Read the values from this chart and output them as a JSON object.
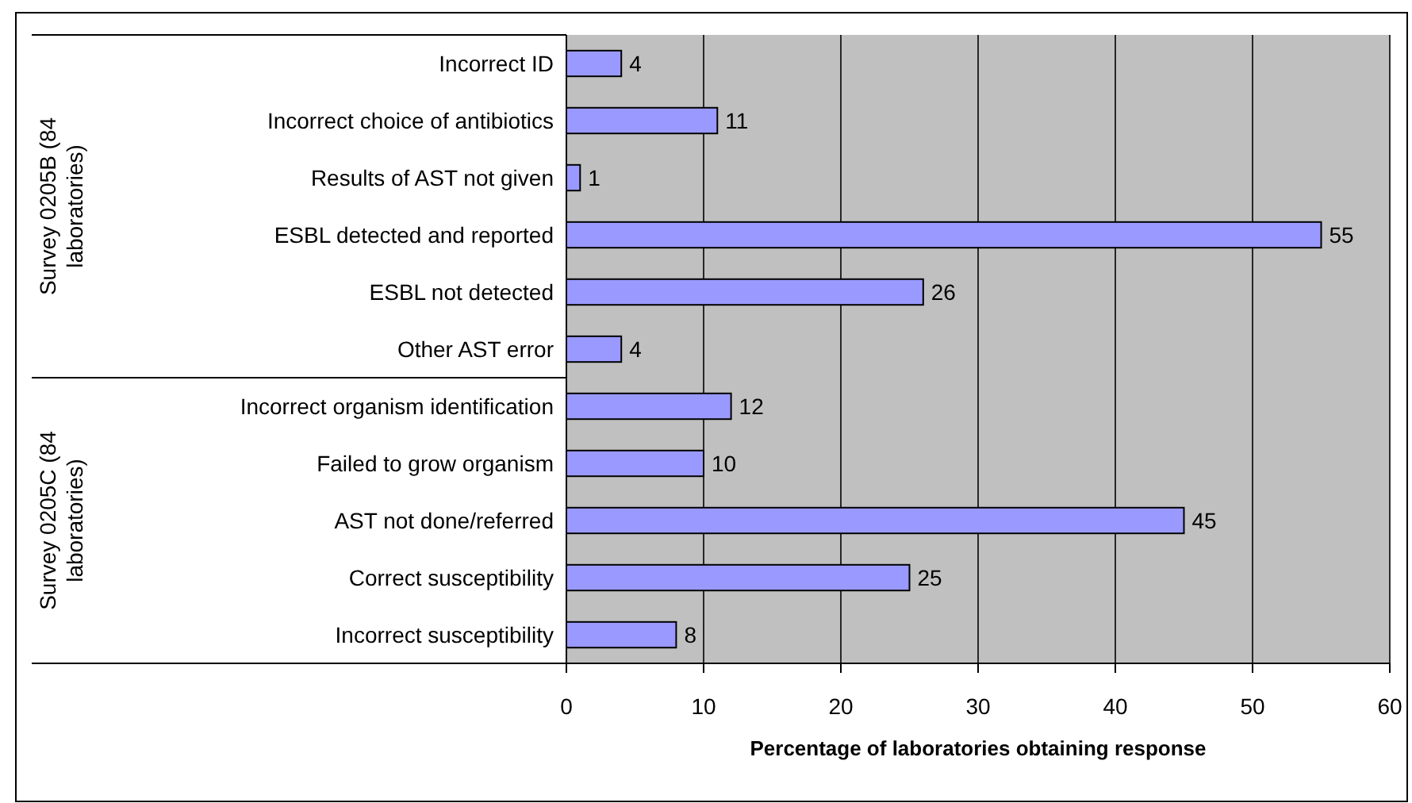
{
  "chart_data": {
    "type": "bar",
    "orientation": "horizontal",
    "categories": [
      "Incorrect ID",
      "Incorrect choice of antibiotics",
      "Results of AST not given",
      "ESBL detected and reported",
      "ESBL not detected",
      "Other AST error",
      "Incorrect organism identification",
      "Failed to grow organism",
      "AST not done/referred",
      "Correct susceptibility",
      "Incorrect susceptibility"
    ],
    "values": [
      4,
      11,
      1,
      55,
      26,
      4,
      12,
      10,
      45,
      25,
      8
    ],
    "color": "#9999ff",
    "data_labels": true,
    "xlim": [
      0,
      60
    ],
    "xticks": [
      0,
      10,
      20,
      30,
      40,
      50,
      60
    ],
    "grid": "x",
    "xlabel": "Percentage of laboratories obtaining response",
    "annotations": [
      "Survey 0205B (84 laboratories)",
      "Survey 0205C (84 laboratories)"
    ]
  }
}
